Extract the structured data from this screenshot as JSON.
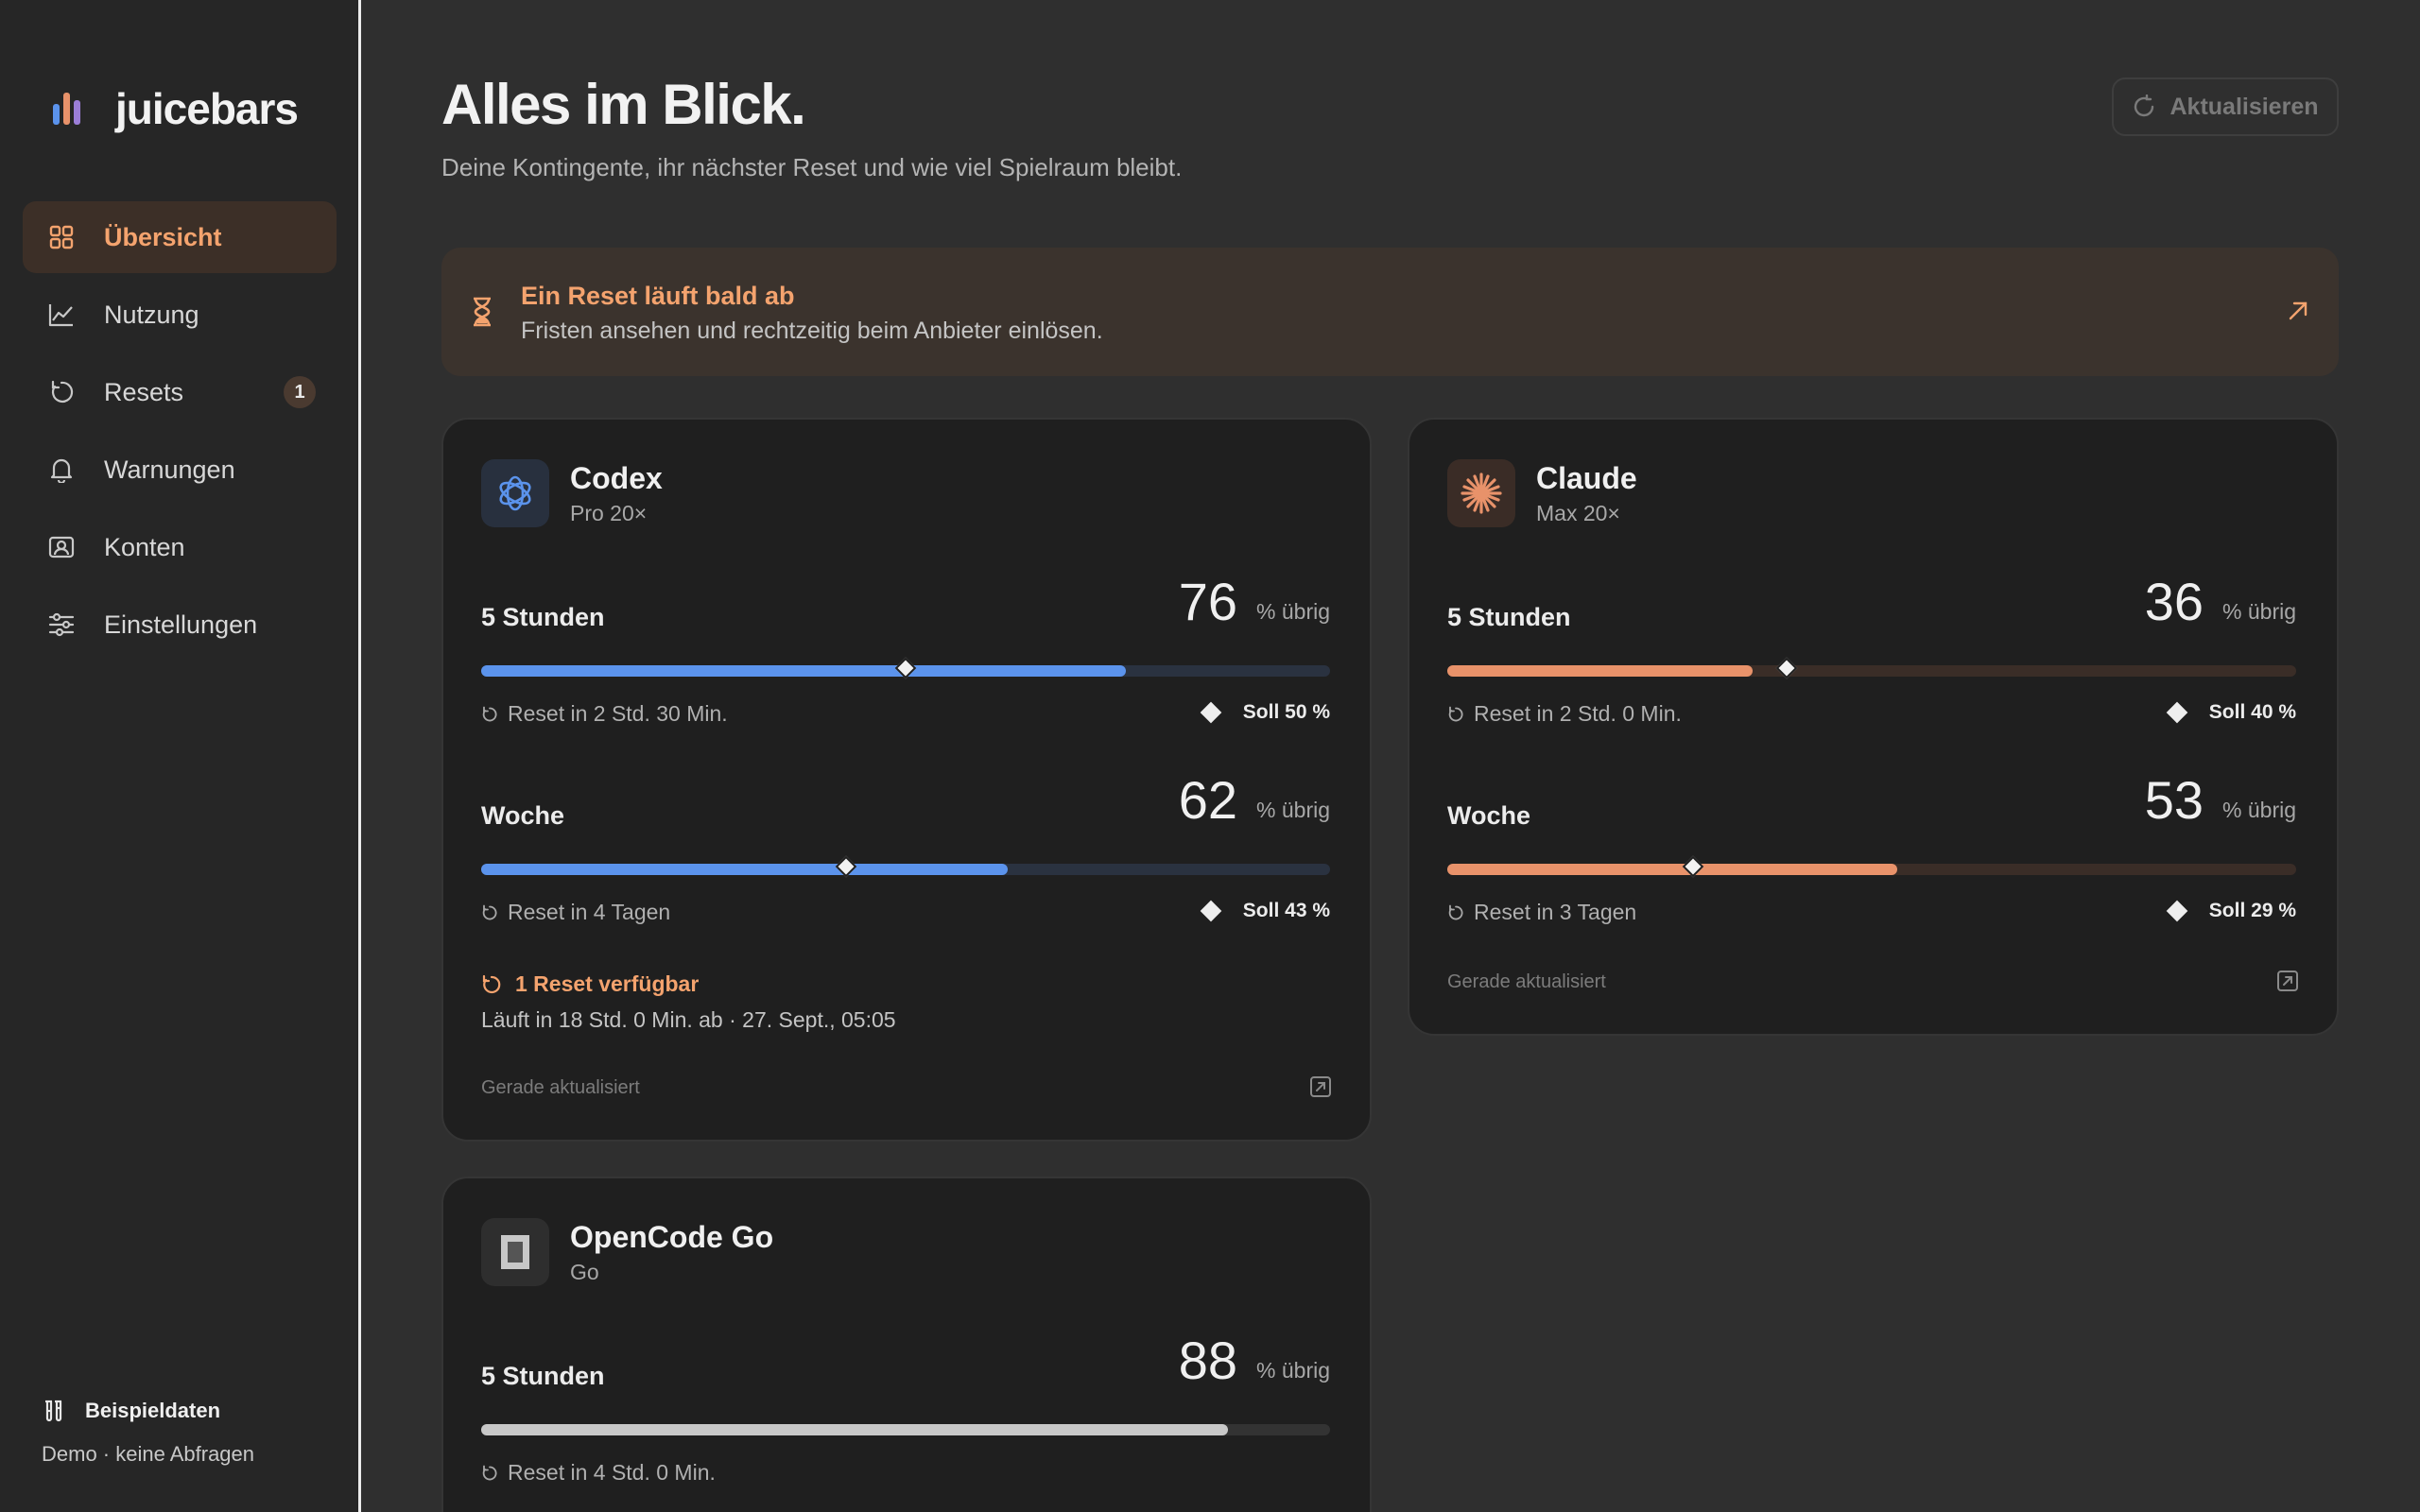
{
  "app": {
    "name": "juicebars"
  },
  "sidebar": {
    "items": [
      {
        "label": "Übersicht",
        "icon": "grid-icon",
        "active": true
      },
      {
        "label": "Nutzung",
        "icon": "chart-line-icon"
      },
      {
        "label": "Resets",
        "icon": "reset-icon",
        "badge": "1"
      },
      {
        "label": "Warnungen",
        "icon": "bell-icon"
      },
      {
        "label": "Konten",
        "icon": "account-icon"
      },
      {
        "label": "Einstellungen",
        "icon": "sliders-icon"
      }
    ],
    "demo": {
      "title": "Beispieldaten",
      "subtitle": "Demo · keine Abfragen"
    }
  },
  "header": {
    "title": "Alles im Blick.",
    "subtitle": "Deine Kontingente, ihr nächster Reset und wie viel Spielraum bleibt.",
    "refresh_label": "Aktualisieren"
  },
  "alert": {
    "title": "Ein Reset läuft bald ab",
    "text": "Fristen ansehen und rechtzeitig beim Anbieter einlösen."
  },
  "colors": {
    "accent": "#f4a36e",
    "codex": "#5b93ec",
    "claude": "#e8926a",
    "opencode": "#c8c8c8"
  },
  "cards": [
    {
      "name": "Codex",
      "plan": "Pro 20×",
      "quotas": [
        {
          "label": "5 Stunden",
          "value": "76",
          "unit": "% übrig",
          "fill": 0.76,
          "target": 0.5,
          "reset": "Reset in 2 Std. 30 Min.",
          "soll": "Soll 50 %"
        },
        {
          "label": "Woche",
          "value": "62",
          "unit": "% übrig",
          "fill": 0.62,
          "target": 0.43,
          "reset": "Reset in 4 Tagen",
          "soll": "Soll 43 %"
        }
      ],
      "reset_available": "1 Reset verfügbar",
      "reset_expiry": "Läuft in 18 Std. 0 Min. ab · 27. Sept., 05:05",
      "updated": "Gerade aktualisiert"
    },
    {
      "name": "Claude",
      "plan": "Max 20×",
      "quotas": [
        {
          "label": "5 Stunden",
          "value": "36",
          "unit": "% übrig",
          "fill": 0.36,
          "target": 0.4,
          "reset": "Reset in 2 Std. 0 Min.",
          "soll": "Soll 40 %"
        },
        {
          "label": "Woche",
          "value": "53",
          "unit": "% übrig",
          "fill": 0.53,
          "target": 0.29,
          "reset": "Reset in 3 Tagen",
          "soll": "Soll 29 %"
        }
      ],
      "updated": "Gerade aktualisiert"
    },
    {
      "name": "OpenCode Go",
      "plan": "Go",
      "quotas": [
        {
          "label": "5 Stunden",
          "value": "88",
          "unit": "% übrig",
          "fill": 0.88,
          "reset": "Reset in 4 Std. 0 Min."
        }
      ]
    }
  ]
}
